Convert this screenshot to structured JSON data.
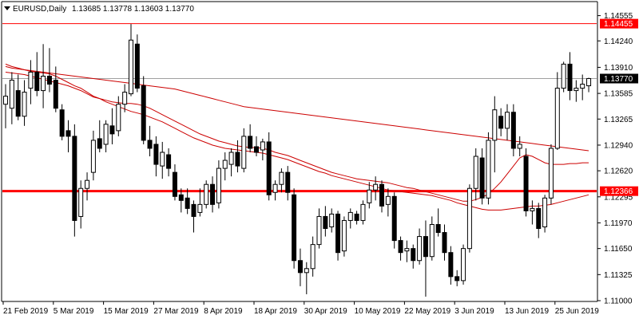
{
  "header": {
    "symbol_label": "EURUSD,Daily",
    "ohlc": "1.13685 1.13778 1.13603 1.13770"
  },
  "colors": {
    "background": "#ffffff",
    "axis": "#000000",
    "bull_candle": "#ffffff",
    "bear_candle": "#000000",
    "moving_average": "#cc0000",
    "support_line": "#ff0000",
    "resistance_line": "#ff0000",
    "current_price_line": "#a0a0a0"
  },
  "chart_data": {
    "type": "candlestick",
    "title": "EURUSD,Daily",
    "y_ticks": [
      "1.14555",
      "1.14240",
      "1.13910",
      "1.13585",
      "1.13265",
      "1.12940",
      "1.12620",
      "1.12295",
      "1.11970",
      "1.11650",
      "1.11325",
      "1.11000"
    ],
    "x_ticks": [
      "21 Feb 2019",
      "5 Mar 2019",
      "15 Mar 2019",
      "27 Mar 2019",
      "8 Apr 2019",
      "18 Apr 2019",
      "30 Apr 2019",
      "10 May 2019",
      "22 May 2019",
      "3 Jun 2019",
      "13 Jun 2019",
      "25 Jun 2019"
    ],
    "ylim": [
      1.11,
      1.1472
    ],
    "horizontal_levels": [
      {
        "value": 1.14455,
        "label": "1.14455",
        "style": "thin"
      },
      {
        "value": 1.12366,
        "label": "1.12366",
        "style": "thick"
      }
    ],
    "current_price": {
      "value": 1.1377,
      "label": "1.13770"
    },
    "candles": [
      {
        "o": 1.1345,
        "h": 1.137,
        "l": 1.1315,
        "c": 1.1355
      },
      {
        "o": 1.134,
        "h": 1.1385,
        "l": 1.132,
        "c": 1.1375
      },
      {
        "o": 1.1362,
        "h": 1.1382,
        "l": 1.1325,
        "c": 1.133
      },
      {
        "o": 1.133,
        "h": 1.1375,
        "l": 1.1318,
        "c": 1.136
      },
      {
        "o": 1.1365,
        "h": 1.14,
        "l": 1.1345,
        "c": 1.1385
      },
      {
        "o": 1.1385,
        "h": 1.141,
        "l": 1.1355,
        "c": 1.1362
      },
      {
        "o": 1.1362,
        "h": 1.142,
        "l": 1.134,
        "c": 1.138
      },
      {
        "o": 1.138,
        "h": 1.1415,
        "l": 1.136,
        "c": 1.137
      },
      {
        "o": 1.1375,
        "h": 1.1392,
        "l": 1.1335,
        "c": 1.134
      },
      {
        "o": 1.1338,
        "h": 1.1345,
        "l": 1.13,
        "c": 1.1305
      },
      {
        "o": 1.1312,
        "h": 1.1325,
        "l": 1.1285,
        "c": 1.1305
      },
      {
        "o": 1.1305,
        "h": 1.132,
        "l": 1.118,
        "c": 1.12
      },
      {
        "o": 1.1205,
        "h": 1.125,
        "l": 1.119,
        "c": 1.124
      },
      {
        "o": 1.124,
        "h": 1.126,
        "l": 1.1225,
        "c": 1.125
      },
      {
        "o": 1.126,
        "h": 1.1312,
        "l": 1.125,
        "c": 1.13
      },
      {
        "o": 1.1302,
        "h": 1.1325,
        "l": 1.1285,
        "c": 1.129
      },
      {
        "o": 1.1295,
        "h": 1.1325,
        "l": 1.1285,
        "c": 1.132
      },
      {
        "o": 1.1318,
        "h": 1.134,
        "l": 1.1295,
        "c": 1.1308
      },
      {
        "o": 1.1312,
        "h": 1.1355,
        "l": 1.1305,
        "c": 1.1345
      },
      {
        "o": 1.1345,
        "h": 1.137,
        "l": 1.1335,
        "c": 1.136
      },
      {
        "o": 1.1358,
        "h": 1.1445,
        "l": 1.1355,
        "c": 1.1425
      },
      {
        "o": 1.142,
        "h": 1.1432,
        "l": 1.136,
        "c": 1.1365
      },
      {
        "o": 1.1368,
        "h": 1.138,
        "l": 1.1295,
        "c": 1.13
      },
      {
        "o": 1.13,
        "h": 1.1318,
        "l": 1.128,
        "c": 1.129
      },
      {
        "o": 1.1295,
        "h": 1.1305,
        "l": 1.1255,
        "c": 1.127
      },
      {
        "o": 1.1268,
        "h": 1.1298,
        "l": 1.1252,
        "c": 1.1285
      },
      {
        "o": 1.1282,
        "h": 1.129,
        "l": 1.1255,
        "c": 1.1265
      },
      {
        "o": 1.126,
        "h": 1.127,
        "l": 1.1225,
        "c": 1.123
      },
      {
        "o": 1.1232,
        "h": 1.124,
        "l": 1.121,
        "c": 1.1225
      },
      {
        "o": 1.1228,
        "h": 1.124,
        "l": 1.1208,
        "c": 1.1215
      },
      {
        "o": 1.122,
        "h": 1.1225,
        "l": 1.1185,
        "c": 1.1205
      },
      {
        "o": 1.121,
        "h": 1.124,
        "l": 1.1205,
        "c": 1.122
      },
      {
        "o": 1.122,
        "h": 1.125,
        "l": 1.1215,
        "c": 1.1245
      },
      {
        "o": 1.1245,
        "h": 1.1255,
        "l": 1.121,
        "c": 1.122
      },
      {
        "o": 1.1222,
        "h": 1.1275,
        "l": 1.1215,
        "c": 1.1265
      },
      {
        "o": 1.1265,
        "h": 1.1285,
        "l": 1.125,
        "c": 1.1275
      },
      {
        "o": 1.127,
        "h": 1.129,
        "l": 1.1255,
        "c": 1.1285
      },
      {
        "o": 1.1285,
        "h": 1.13,
        "l": 1.126,
        "c": 1.1268
      },
      {
        "o": 1.1265,
        "h": 1.1315,
        "l": 1.126,
        "c": 1.1305
      },
      {
        "o": 1.1305,
        "h": 1.132,
        "l": 1.1285,
        "c": 1.129
      },
      {
        "o": 1.1292,
        "h": 1.1305,
        "l": 1.128,
        "c": 1.1285
      },
      {
        "o": 1.1288,
        "h": 1.1302,
        "l": 1.1275,
        "c": 1.1298
      },
      {
        "o": 1.1298,
        "h": 1.131,
        "l": 1.1225,
        "c": 1.1232
      },
      {
        "o": 1.1235,
        "h": 1.125,
        "l": 1.1225,
        "c": 1.1245
      },
      {
        "o": 1.1245,
        "h": 1.1265,
        "l": 1.1235,
        "c": 1.126
      },
      {
        "o": 1.126,
        "h": 1.1268,
        "l": 1.1225,
        "c": 1.1235
      },
      {
        "o": 1.1232,
        "h": 1.124,
        "l": 1.114,
        "c": 1.115
      },
      {
        "o": 1.115,
        "h": 1.1165,
        "l": 1.1118,
        "c": 1.1135
      },
      {
        "o": 1.1135,
        "h": 1.1148,
        "l": 1.1108,
        "c": 1.114
      },
      {
        "o": 1.114,
        "h": 1.118,
        "l": 1.113,
        "c": 1.117
      },
      {
        "o": 1.117,
        "h": 1.1215,
        "l": 1.1165,
        "c": 1.1205
      },
      {
        "o": 1.1205,
        "h": 1.1218,
        "l": 1.118,
        "c": 1.119
      },
      {
        "o": 1.1192,
        "h": 1.1215,
        "l": 1.1185,
        "c": 1.1208
      },
      {
        "o": 1.1208,
        "h": 1.1212,
        "l": 1.115,
        "c": 1.116
      },
      {
        "o": 1.1162,
        "h": 1.1205,
        "l": 1.1155,
        "c": 1.12
      },
      {
        "o": 1.12,
        "h": 1.1215,
        "l": 1.119,
        "c": 1.121
      },
      {
        "o": 1.1208,
        "h": 1.1212,
        "l": 1.1195,
        "c": 1.12
      },
      {
        "o": 1.12,
        "h": 1.1225,
        "l": 1.1195,
        "c": 1.122
      },
      {
        "o": 1.1222,
        "h": 1.1248,
        "l": 1.1215,
        "c": 1.1238
      },
      {
        "o": 1.1238,
        "h": 1.1255,
        "l": 1.1225,
        "c": 1.1245
      },
      {
        "o": 1.1245,
        "h": 1.125,
        "l": 1.121,
        "c": 1.1218
      },
      {
        "o": 1.122,
        "h": 1.124,
        "l": 1.1205,
        "c": 1.123
      },
      {
        "o": 1.123,
        "h": 1.1235,
        "l": 1.1165,
        "c": 1.1175
      },
      {
        "o": 1.1175,
        "h": 1.118,
        "l": 1.115,
        "c": 1.116
      },
      {
        "o": 1.1162,
        "h": 1.1175,
        "l": 1.1148,
        "c": 1.1165
      },
      {
        "o": 1.1165,
        "h": 1.117,
        "l": 1.114,
        "c": 1.115
      },
      {
        "o": 1.115,
        "h": 1.119,
        "l": 1.1145,
        "c": 1.118
      },
      {
        "o": 1.118,
        "h": 1.12,
        "l": 1.1105,
        "c": 1.1155
      },
      {
        "o": 1.1155,
        "h": 1.1205,
        "l": 1.115,
        "c": 1.1195
      },
      {
        "o": 1.1195,
        "h": 1.1215,
        "l": 1.118,
        "c": 1.1185
      },
      {
        "o": 1.1185,
        "h": 1.1195,
        "l": 1.115,
        "c": 1.116
      },
      {
        "o": 1.116,
        "h": 1.1168,
        "l": 1.112,
        "c": 1.113
      },
      {
        "o": 1.113,
        "h": 1.1138,
        "l": 1.1118,
        "c": 1.1125
      },
      {
        "o": 1.1125,
        "h": 1.117,
        "l": 1.112,
        "c": 1.1165
      },
      {
        "o": 1.1165,
        "h": 1.1245,
        "l": 1.116,
        "c": 1.124
      },
      {
        "o": 1.124,
        "h": 1.129,
        "l": 1.1225,
        "c": 1.128
      },
      {
        "o": 1.1278,
        "h": 1.129,
        "l": 1.122,
        "c": 1.1228
      },
      {
        "o": 1.1228,
        "h": 1.131,
        "l": 1.122,
        "c": 1.13
      },
      {
        "o": 1.13,
        "h": 1.1355,
        "l": 1.126,
        "c": 1.1338
      },
      {
        "o": 1.133,
        "h": 1.134,
        "l": 1.1305,
        "c": 1.1315
      },
      {
        "o": 1.1315,
        "h": 1.1345,
        "l": 1.13,
        "c": 1.1335
      },
      {
        "o": 1.1335,
        "h": 1.1345,
        "l": 1.128,
        "c": 1.129
      },
      {
        "o": 1.129,
        "h": 1.1305,
        "l": 1.128,
        "c": 1.1295
      },
      {
        "o": 1.128,
        "h": 1.129,
        "l": 1.1205,
        "c": 1.1212
      },
      {
        "o": 1.1212,
        "h": 1.1225,
        "l": 1.1195,
        "c": 1.1215
      },
      {
        "o": 1.1215,
        "h": 1.1222,
        "l": 1.1178,
        "c": 1.119
      },
      {
        "o": 1.1192,
        "h": 1.1232,
        "l": 1.1185,
        "c": 1.1228
      },
      {
        "o": 1.1228,
        "h": 1.1295,
        "l": 1.122,
        "c": 1.129
      },
      {
        "o": 1.129,
        "h": 1.1385,
        "l": 1.1288,
        "c": 1.1365
      },
      {
        "o": 1.1365,
        "h": 1.1398,
        "l": 1.136,
        "c": 1.1395
      },
      {
        "o": 1.1395,
        "h": 1.141,
        "l": 1.135,
        "c": 1.1362
      },
      {
        "o": 1.1362,
        "h": 1.1375,
        "l": 1.1348,
        "c": 1.1365
      },
      {
        "o": 1.1365,
        "h": 1.1382,
        "l": 1.135,
        "c": 1.137
      },
      {
        "o": 1.1368,
        "h": 1.1378,
        "l": 1.136,
        "c": 1.1377
      }
    ],
    "moving_averages": [
      {
        "values": [
          1.1395,
          1.1392,
          1.139,
          1.1388,
          1.1386,
          1.1385,
          1.1384,
          1.1383,
          1.138,
          1.1376,
          1.1372,
          1.1368,
          1.1365,
          1.136,
          1.1355,
          1.1352,
          1.1348,
          1.1345,
          1.1342,
          1.1339,
          1.1336,
          1.1334,
          1.1332,
          1.1329,
          1.1326,
          1.1323,
          1.1319,
          1.1315,
          1.1311,
          1.1307,
          1.1303,
          1.13,
          1.1297,
          1.1294,
          1.1292,
          1.129,
          1.1289,
          1.1288,
          1.1287,
          1.1286,
          1.1285,
          1.1284,
          1.1282,
          1.128,
          1.1278,
          1.1276,
          1.1273,
          1.127,
          1.1267,
          1.1264,
          1.1261,
          1.1259,
          1.1256,
          1.1254,
          1.1252,
          1.125,
          1.1248,
          1.1246,
          1.1244,
          1.1242,
          1.124,
          1.1238,
          1.1237,
          1.1236,
          1.1235,
          1.1234,
          1.1233,
          1.1232,
          1.1231,
          1.1229,
          1.1227,
          1.1225,
          1.1222,
          1.122,
          1.1218,
          1.1216,
          1.1214,
          1.1213,
          1.1213,
          1.1213,
          1.1214,
          1.1215,
          1.1216,
          1.1217,
          1.1218,
          1.1218,
          1.1219,
          1.122,
          1.1222,
          1.1224,
          1.1226,
          1.1228,
          1.123,
          1.1232
        ]
      },
      {
        "values": [
          1.1385,
          1.1384,
          1.1383,
          1.1382,
          1.138,
          1.1378,
          1.1376,
          1.1374,
          1.1372,
          1.137,
          1.1368,
          1.1365,
          1.1362,
          1.1358,
          1.1354,
          1.1352,
          1.135,
          1.1348,
          1.1347,
          1.1346,
          1.1346,
          1.1345,
          1.1343,
          1.134,
          1.1336,
          1.1332,
          1.1328,
          1.1324,
          1.132,
          1.1316,
          1.1312,
          1.1308,
          1.1305,
          1.1302,
          1.1299,
          1.1297,
          1.1295,
          1.1293,
          1.1292,
          1.1291,
          1.1291,
          1.129,
          1.1288,
          1.1285,
          1.1283,
          1.1281,
          1.1278,
          1.1275,
          1.1272,
          1.1269,
          1.1266,
          1.1263,
          1.126,
          1.1258,
          1.1256,
          1.1254,
          1.1252,
          1.1251,
          1.125,
          1.1249,
          1.1248,
          1.1247,
          1.1245,
          1.1243,
          1.1241,
          1.124,
          1.1238,
          1.1236,
          1.1234,
          1.1232,
          1.123,
          1.1228,
          1.1226,
          1.1224,
          1.1224,
          1.1226,
          1.1229,
          1.1233,
          1.124,
          1.1248,
          1.1258,
          1.1268,
          1.1278,
          1.1282,
          1.128,
          1.1276,
          1.1272,
          1.127,
          1.127,
          1.127,
          1.1271,
          1.1271,
          1.1272,
          1.1272
        ]
      },
      {
        "values": [
          1.1392,
          1.139,
          1.1389,
          1.1388,
          1.1387,
          1.1386,
          1.1385,
          1.1384,
          1.1383,
          1.1382,
          1.1381,
          1.138,
          1.1379,
          1.1378,
          1.1377,
          1.1376,
          1.1375,
          1.1374,
          1.1373,
          1.1372,
          1.1371,
          1.137,
          1.1369,
          1.1368,
          1.1367,
          1.1366,
          1.1365,
          1.1364,
          1.1362,
          1.136,
          1.1358,
          1.1356,
          1.1354,
          1.1352,
          1.135,
          1.1348,
          1.1346,
          1.1344,
          1.1342,
          1.1341,
          1.134,
          1.1339,
          1.1338,
          1.1337,
          1.1336,
          1.1335,
          1.1334,
          1.1333,
          1.1332,
          1.1331,
          1.133,
          1.1329,
          1.1328,
          1.1327,
          1.1326,
          1.1325,
          1.1324,
          1.1323,
          1.1322,
          1.1321,
          1.132,
          1.1319,
          1.1318,
          1.1317,
          1.1316,
          1.1315,
          1.1314,
          1.1313,
          1.1312,
          1.1311,
          1.131,
          1.1309,
          1.1308,
          1.1307,
          1.1306,
          1.1305,
          1.1304,
          1.1303,
          1.1302,
          1.1301,
          1.13,
          1.1299,
          1.1298,
          1.1297,
          1.1296,
          1.1295,
          1.1294,
          1.1293,
          1.1292,
          1.1291,
          1.129,
          1.1289,
          1.1288,
          1.1287
        ]
      }
    ]
  }
}
